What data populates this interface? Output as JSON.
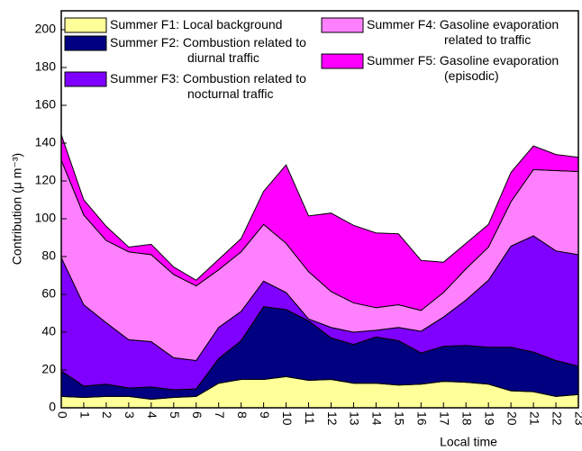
{
  "chart_data": {
    "type": "stacked_area",
    "x_label": "Local time",
    "y_label": "Contribution (μ m⁻³)",
    "x": [
      0,
      1,
      2,
      3,
      4,
      5,
      6,
      7,
      8,
      9,
      10,
      11,
      12,
      13,
      14,
      15,
      16,
      17,
      18,
      19,
      20,
      21,
      22,
      23
    ],
    "xlim": [
      0,
      23
    ],
    "xticks": [
      0,
      1,
      2,
      3,
      4,
      5,
      6,
      7,
      8,
      9,
      10,
      11,
      12,
      13,
      14,
      15,
      16,
      17,
      18,
      19,
      20,
      21,
      22,
      23
    ],
    "ylim": [
      0,
      210
    ],
    "yticks": [
      0,
      20,
      40,
      60,
      80,
      100,
      120,
      140,
      160,
      180,
      200
    ],
    "series": [
      {
        "name": "Summer F1: Local background",
        "color": "#ffff99",
        "values": [
          6,
          5.5,
          6,
          6,
          4.5,
          5.5,
          6,
          13,
          15,
          15,
          16.5,
          14.5,
          15,
          13,
          13,
          12,
          12.5,
          14,
          13.5,
          12.5,
          9,
          8.5,
          6,
          7
        ]
      },
      {
        "name": "Summer F2: Combustion related to diurnal traffic",
        "color": "#000080",
        "values": [
          13.5,
          6,
          6.5,
          4.5,
          6.5,
          4,
          4,
          13,
          20.5,
          38.5,
          35.5,
          31.5,
          22,
          20.5,
          24.5,
          23.5,
          16.5,
          18.5,
          19.5,
          19.5,
          23,
          21,
          19,
          15
        ]
      },
      {
        "name": "Summer F3: Combustion related to nocturnal traffic",
        "color": "#7f00ff",
        "values": [
          60,
          43,
          32.5,
          25.5,
          24,
          17,
          15,
          16.5,
          15.5,
          13.5,
          9,
          1,
          5.5,
          6.5,
          3.5,
          7,
          11.5,
          15.5,
          24,
          35.5,
          53.5,
          61.5,
          58,
          59
        ]
      },
      {
        "name": "Summer F4: Gasoline evaporation related to traffic",
        "color": "#ff80ff",
        "values": [
          51.5,
          47.5,
          43.5,
          46.5,
          46,
          44,
          39.5,
          30.5,
          31.5,
          30,
          26,
          25,
          19,
          15.5,
          12,
          12,
          11,
          13,
          16.5,
          17.5,
          23.5,
          35,
          42.5,
          44
        ]
      },
      {
        "name": "Summer F5: Gasoline evaporation (episodic)",
        "color": "#ff00ff",
        "values": [
          13.5,
          8,
          7.5,
          2.5,
          5.5,
          4,
          3,
          5.5,
          7,
          17.5,
          41.5,
          29.5,
          41.5,
          41,
          39.5,
          37.5,
          26.5,
          16,
          13.5,
          12,
          15.5,
          12.5,
          8.5,
          7.5
        ]
      }
    ]
  }
}
